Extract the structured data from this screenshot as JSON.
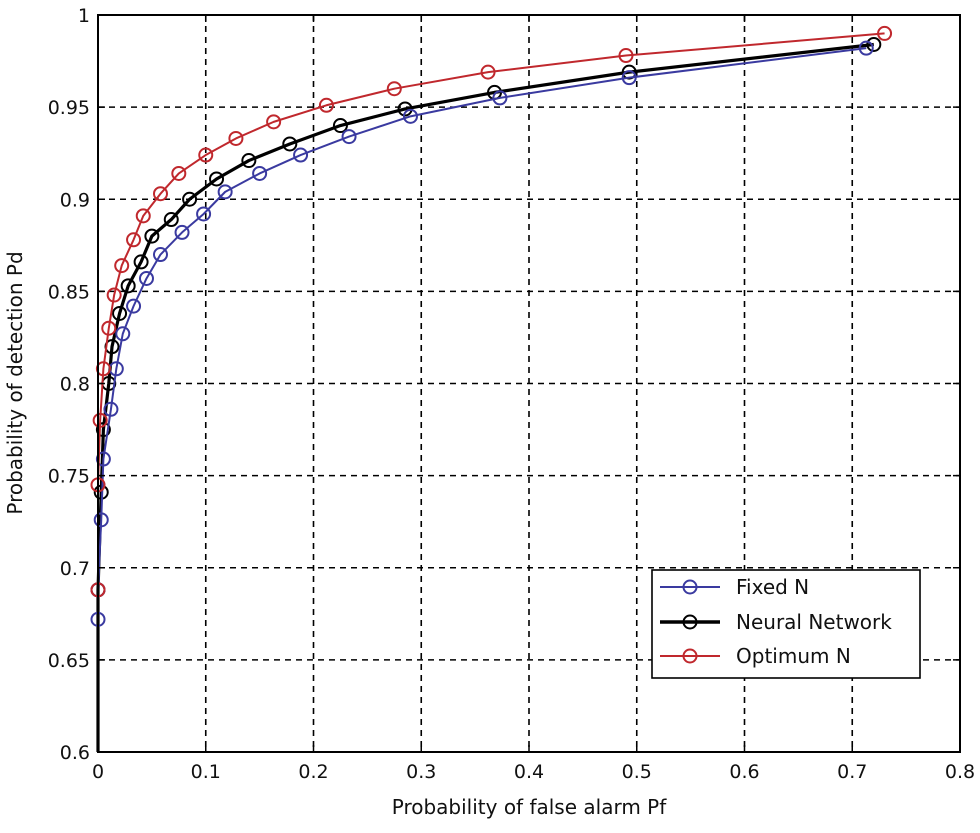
{
  "chart_data": {
    "type": "line",
    "title": "",
    "xlabel": "Probability of false alarm Pf",
    "ylabel": "Probability of detection Pd",
    "xlim": [
      0,
      0.8
    ],
    "ylim": [
      0.6,
      1.0
    ],
    "xticks": [
      0,
      0.1,
      0.2,
      0.3,
      0.4,
      0.5,
      0.6,
      0.7,
      0.8
    ],
    "xtick_labels": [
      "0",
      "0.1",
      "0.2",
      "0.3",
      "0.4",
      "0.5",
      "0.6",
      "0.7",
      "0.8"
    ],
    "yticks": [
      0.6,
      0.65,
      0.7,
      0.75,
      0.8,
      0.85,
      0.9,
      0.95,
      1.0
    ],
    "ytick_labels": [
      "0.6",
      "0.65",
      "0.7",
      "0.75",
      "0.8",
      "0.85",
      "0.9",
      "0.95",
      "1"
    ],
    "grid": true,
    "legend_position": "bottom-right",
    "series": [
      {
        "name": "Fixed N",
        "color": "#3a3aa0",
        "points": [
          [
            0.0,
            0.6
          ],
          [
            0.0,
            0.672
          ],
          [
            0.0,
            0.688
          ],
          [
            0.003,
            0.726
          ],
          [
            0.005,
            0.759
          ],
          [
            0.012,
            0.786
          ],
          [
            0.017,
            0.808
          ],
          [
            0.023,
            0.827
          ],
          [
            0.033,
            0.842
          ],
          [
            0.045,
            0.857
          ],
          [
            0.058,
            0.87
          ],
          [
            0.078,
            0.882
          ],
          [
            0.098,
            0.892
          ],
          [
            0.118,
            0.904
          ],
          [
            0.15,
            0.914
          ],
          [
            0.188,
            0.924
          ],
          [
            0.233,
            0.934
          ],
          [
            0.29,
            0.945
          ],
          [
            0.373,
            0.955
          ],
          [
            0.493,
            0.966
          ],
          [
            0.713,
            0.982
          ]
        ]
      },
      {
        "name": "Neural Network",
        "color": "#000000",
        "points": [
          [
            0.0,
            0.6
          ],
          [
            0.0,
            0.688
          ],
          [
            0.003,
            0.741
          ],
          [
            0.005,
            0.775
          ],
          [
            0.01,
            0.8
          ],
          [
            0.013,
            0.82
          ],
          [
            0.02,
            0.838
          ],
          [
            0.028,
            0.853
          ],
          [
            0.04,
            0.866
          ],
          [
            0.05,
            0.88
          ],
          [
            0.068,
            0.889
          ],
          [
            0.085,
            0.9
          ],
          [
            0.11,
            0.911
          ],
          [
            0.14,
            0.921
          ],
          [
            0.178,
            0.93
          ],
          [
            0.225,
            0.94
          ],
          [
            0.285,
            0.949
          ],
          [
            0.368,
            0.958
          ],
          [
            0.493,
            0.969
          ],
          [
            0.72,
            0.984
          ]
        ]
      },
      {
        "name": "Optimum N",
        "color": "#c0282d",
        "points": [
          [
            0.0,
            0.6
          ],
          [
            0.0,
            0.688
          ],
          [
            0.0,
            0.745
          ],
          [
            0.002,
            0.78
          ],
          [
            0.005,
            0.808
          ],
          [
            0.01,
            0.83
          ],
          [
            0.015,
            0.848
          ],
          [
            0.022,
            0.864
          ],
          [
            0.033,
            0.878
          ],
          [
            0.042,
            0.891
          ],
          [
            0.058,
            0.903
          ],
          [
            0.075,
            0.914
          ],
          [
            0.1,
            0.924
          ],
          [
            0.128,
            0.933
          ],
          [
            0.163,
            0.942
          ],
          [
            0.212,
            0.951
          ],
          [
            0.275,
            0.96
          ],
          [
            0.362,
            0.969
          ],
          [
            0.49,
            0.978
          ],
          [
            0.73,
            0.99
          ]
        ]
      }
    ]
  }
}
